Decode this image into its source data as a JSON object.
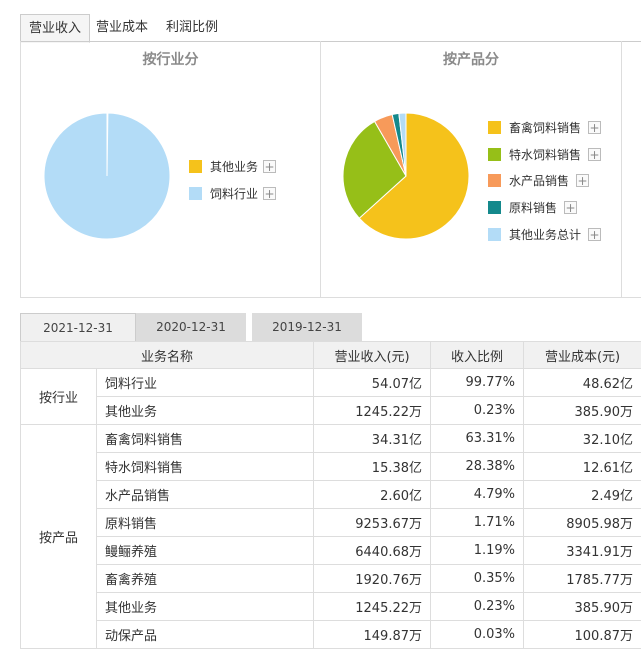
{
  "top_tabs": [
    "营业收入",
    "营业成本",
    "利润比例"
  ],
  "charts": {
    "industry": {
      "title": "按行业分",
      "legend": [
        "其他业务",
        "饲料行业"
      ]
    },
    "product": {
      "title": "按产品分",
      "legend": [
        "畜禽饲料销售",
        "特水饲料销售",
        "水产品销售",
        "原料销售",
        "其他业务总计"
      ]
    }
  },
  "chart_data": [
    {
      "type": "pie",
      "title": "按行业分",
      "labels": [
        "其他业务",
        "饲料行业"
      ],
      "values": [
        0.23,
        99.77
      ],
      "colors": [
        "#f5c21b",
        "#b3dcf7"
      ]
    },
    {
      "type": "pie",
      "title": "按产品分",
      "labels": [
        "畜禽饲料销售",
        "特水饲料销售",
        "水产品销售",
        "原料销售",
        "其他业务总计"
      ],
      "values": [
        63.31,
        28.38,
        4.79,
        1.71,
        1.81
      ],
      "colors": [
        "#f5c21b",
        "#96bf18",
        "#f79a5a",
        "#14898c",
        "#b3dcf7"
      ]
    }
  ],
  "date_tabs": [
    "2021-12-31",
    "2020-12-31",
    "2019-12-31"
  ],
  "table": {
    "headers": [
      "业务名称",
      "营业收入(元)",
      "收入比例",
      "营业成本(元)"
    ],
    "groups": [
      {
        "label": "按行业",
        "rows": [
          [
            "饲料行业",
            "54.07亿",
            "99.77%",
            "48.62亿"
          ],
          [
            "其他业务",
            "1245.22万",
            "0.23%",
            "385.90万"
          ]
        ]
      },
      {
        "label": "按产品",
        "rows": [
          [
            "畜禽饲料销售",
            "34.31亿",
            "63.31%",
            "32.10亿"
          ],
          [
            "特水饲料销售",
            "15.38亿",
            "28.38%",
            "12.61亿"
          ],
          [
            "水产品销售",
            "2.60亿",
            "4.79%",
            "2.49亿"
          ],
          [
            "原料销售",
            "9253.67万",
            "1.71%",
            "8905.98万"
          ],
          [
            "鳗鲡养殖",
            "6440.68万",
            "1.19%",
            "3341.91万"
          ],
          [
            "畜禽养殖",
            "1920.76万",
            "0.35%",
            "1785.77万"
          ],
          [
            "其他业务",
            "1245.22万",
            "0.23%",
            "385.90万"
          ],
          [
            "动保产品",
            "149.87万",
            "0.03%",
            "100.87万"
          ]
        ]
      }
    ]
  }
}
